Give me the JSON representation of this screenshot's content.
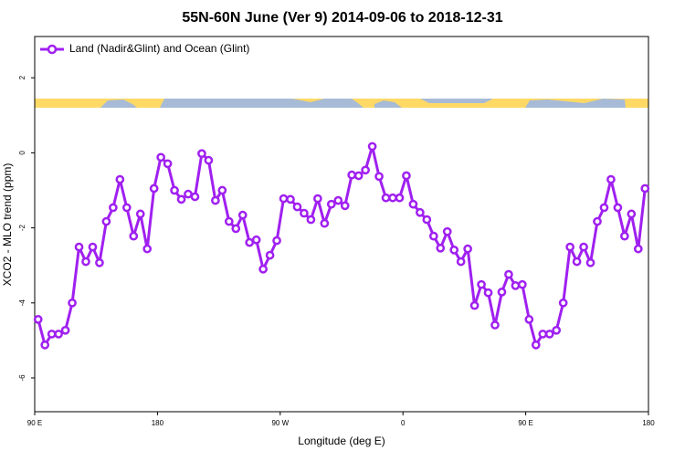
{
  "chart_data": {
    "type": "line",
    "title": "55N-60N June (Ver 9)   2014-09-06 to 2018-12-31",
    "x_label": "Longitude (deg E)",
    "y_label": "XCO2 - MLO trend (ppm)",
    "x": [
      92.5,
      97.5,
      102.5,
      107.5,
      112.5,
      117.5,
      122.5,
      127.5,
      132.5,
      137.5,
      142.5,
      147.5,
      152.5,
      157.5,
      162.5,
      167.5,
      172.5,
      177.5,
      182.5,
      187.5,
      192.5,
      197.5,
      202.5,
      207.5,
      212.5,
      217.5,
      222.5,
      227.5,
      232.5,
      237.5,
      242.5,
      247.5,
      252.5,
      257.5,
      262.5,
      267.5,
      272.5,
      277.5,
      282.5,
      287.5,
      292.5,
      297.5,
      302.5,
      307.5,
      312.5,
      317.5,
      322.5,
      327.5,
      332.5,
      337.5,
      342.5,
      347.5,
      352.5,
      357.5,
      362.5,
      367.5,
      372.5,
      377.5,
      382.5,
      387.5,
      392.5,
      397.5,
      402.5,
      407.5,
      412.5,
      417.5,
      422.5,
      427.5,
      432.5,
      437.5,
      442.5,
      447.5,
      452.5,
      457.5,
      462.5,
      467.5,
      472.5,
      477.5,
      482.5,
      487.5,
      492.5,
      497.5,
      502.5,
      507.5,
      512.5,
      517.5,
      522.5,
      527.5,
      532.5,
      537.5
    ],
    "series": [
      {
        "name": "Land (Nadir&Glint) and Ocean (Glint)",
        "color": "#a020f0",
        "values": [
          -4.44,
          -5.12,
          -4.83,
          -4.83,
          -4.73,
          -4.0,
          -2.51,
          -2.9,
          -2.51,
          -2.93,
          -1.83,
          -1.46,
          -0.71,
          -1.46,
          -2.22,
          -1.63,
          -2.56,
          -0.95,
          -0.12,
          -0.29,
          -1.0,
          -1.24,
          -1.1,
          -1.17,
          -0.02,
          -0.2,
          -1.27,
          -1.0,
          -1.83,
          -2.02,
          -1.66,
          -2.39,
          -2.32,
          -3.1,
          -2.73,
          -2.34,
          -1.22,
          -1.24,
          -1.44,
          -1.61,
          -1.78,
          -1.22,
          -1.88,
          -1.37,
          -1.27,
          -1.41,
          -0.59,
          -0.61,
          -0.46,
          0.17,
          -0.63,
          -1.2,
          -1.2,
          -1.2,
          -0.61,
          -1.37,
          -1.59,
          -1.78,
          -2.22,
          -2.54,
          -2.1,
          -2.59,
          -2.9,
          -2.56,
          -4.07,
          -3.51,
          -3.73,
          -4.59,
          -3.71,
          -3.24,
          -3.54,
          -3.51,
          -4.44,
          -5.12,
          -4.83,
          -4.83,
          -4.73,
          -4.0,
          -2.51,
          -2.9,
          -2.51,
          -2.93,
          -1.83,
          -1.46,
          -0.71,
          -1.46,
          -2.22,
          -1.63,
          -2.56,
          -0.95
        ]
      }
    ],
    "xlim": [
      90,
      540
    ],
    "xticks": [
      {
        "value": 90,
        "label": "90 E"
      },
      {
        "value": 180,
        "label": "180"
      },
      {
        "value": 270,
        "label": "90 W"
      },
      {
        "value": 360,
        "label": "0"
      },
      {
        "value": 450,
        "label": "90 E"
      },
      {
        "value": 540,
        "label": "180"
      }
    ],
    "ylim": [
      -6.9,
      3.1
    ],
    "yticks": [
      -6,
      -4,
      -2,
      0,
      2
    ],
    "legend": "top-left"
  }
}
